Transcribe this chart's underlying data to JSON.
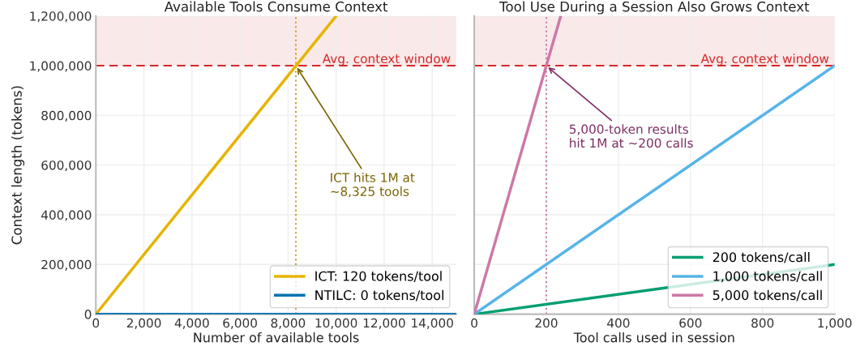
{
  "chart_data": [
    {
      "type": "line",
      "title": "Available Tools Consume Context",
      "xlabel": "Number of available tools",
      "ylabel": "Context length (tokens)",
      "series": [
        {
          "name": "ICT: 120 tokens/tool",
          "color": "#e6b400",
          "x": [
            0,
            10000
          ],
          "values": [
            0,
            1200000
          ]
        },
        {
          "name": "NTILC: 0 tokens/tool",
          "color": "#0072b2",
          "x": [
            0,
            15000
          ],
          "values": [
            0,
            0
          ]
        }
      ],
      "xlim": [
        0,
        15000
      ],
      "xticks": [
        0,
        {
          "value": 2000,
          "label": "2,000"
        },
        {
          "value": 4000,
          "label": "4,000"
        },
        {
          "value": 6000,
          "label": "6,000"
        },
        {
          "value": 8000,
          "label": "8,000"
        },
        {
          "value": 10000,
          "label": "10,000"
        },
        {
          "value": 12000,
          "label": "12,000"
        },
        {
          "value": 14000,
          "label": "14,000"
        }
      ],
      "ylim": [
        0,
        1200000
      ],
      "yticks": [
        0,
        {
          "value": 200000,
          "label": "200,000"
        },
        {
          "value": 400000,
          "label": "400,000"
        },
        {
          "value": 600000,
          "label": "600,000"
        },
        {
          "value": 800000,
          "label": "800,000"
        },
        {
          "value": 1000000,
          "label": "1,000,000"
        },
        {
          "value": 1200000,
          "label": "1,200,000"
        }
      ],
      "ref_lines": [
        {
          "axis": "y",
          "value": 1000000,
          "label": "Avg. context window",
          "color": "#d62728",
          "line_style": "dashed"
        },
        {
          "axis": "x",
          "value": 8325,
          "label": null,
          "color": "#c9a227",
          "line_style": "dotted"
        }
      ],
      "bands": [
        {
          "axis": "y",
          "from": 1000000,
          "to": 1200000,
          "label": null,
          "color": "#f7e3e3"
        }
      ],
      "annotations": [
        {
          "text": "ICT hits 1M at\n~8,325 tools",
          "x": 8325,
          "y": 1000000
        }
      ],
      "grid": true,
      "legend": "bottom right",
      "line_style": "solid",
      "marker": "none"
    },
    {
      "type": "line",
      "title": "Tool Use During a Session Also Grows Context",
      "xlabel": "Tool calls used in session",
      "series": [
        {
          "name": "200 tokens/call",
          "color": "#009e73",
          "x": [
            0,
            1000
          ],
          "values": [
            0,
            200000
          ]
        },
        {
          "name": "1,000 tokens/call",
          "color": "#56b4e9",
          "x": [
            0,
            1000
          ],
          "values": [
            0,
            1000000
          ]
        },
        {
          "name": "5,000 tokens/call",
          "color": "#cc79a7",
          "x": [
            0,
            240
          ],
          "values": [
            0,
            1200000
          ]
        }
      ],
      "xlim": [
        0,
        1000
      ],
      "xticks": [
        0,
        200,
        400,
        600,
        800,
        {
          "value": 1000,
          "label": "1,000"
        }
      ],
      "ylim": [
        0,
        1200000
      ],
      "yticks": [
        {
          "value": 0,
          "label": null
        },
        {
          "value": 200000,
          "label": null
        },
        {
          "value": 400000,
          "label": null
        },
        {
          "value": 600000,
          "label": null
        },
        {
          "value": 800000,
          "label": null
        },
        {
          "value": 1000000,
          "label": null
        },
        {
          "value": 1200000,
          "label": null
        }
      ],
      "tick_labels": "x",
      "ref_lines": [
        {
          "axis": "y",
          "value": 1000000,
          "label": "Avg. context window",
          "color": "#d62728",
          "line_style": "dashed"
        },
        {
          "axis": "x",
          "value": 200,
          "label": null,
          "color": "#cc79a7",
          "line_style": "dotted"
        }
      ],
      "bands": [
        {
          "axis": "y",
          "from": 1000000,
          "to": 1200000,
          "label": null,
          "color": "#f7e3e3"
        }
      ],
      "annotations": [
        {
          "text": "5,000-token results\nhit 1M at ~200 calls",
          "x": 200,
          "y": 1000000
        }
      ],
      "grid": true,
      "legend": "bottom right",
      "line_style": "solid",
      "marker": "none"
    }
  ]
}
